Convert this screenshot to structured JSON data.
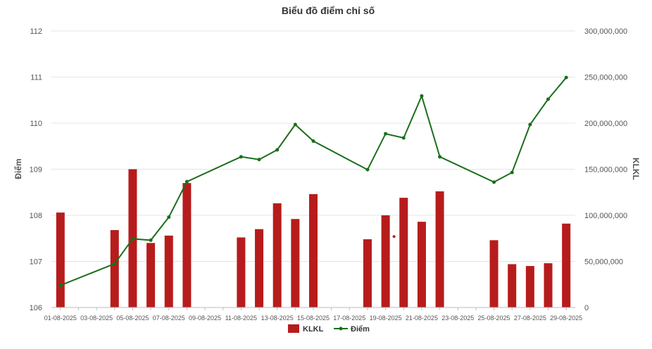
{
  "chart_data": {
    "type": "bar+line",
    "title": "Biểu đồ điểm chỉ số",
    "ylabel_left": "Điểm",
    "ylabel_right": "KLKL",
    "ylim_left": [
      106,
      112
    ],
    "ylim_right": [
      0,
      300000000
    ],
    "left_ticks": [
      "106",
      "107",
      "108",
      "109",
      "110",
      "111",
      "112"
    ],
    "right_ticks": [
      "0",
      "50,000,000",
      "100,000,000",
      "150,000,000",
      "200,000,000",
      "250,000,000",
      "300,000,000"
    ],
    "x": [
      "01-08-2025",
      "02-08-2025",
      "03-08-2025",
      "04-08-2025",
      "05-08-2025",
      "06-08-2025",
      "07-08-2025",
      "08-08-2025",
      "09-08-2025",
      "10-08-2025",
      "11-08-2025",
      "12-08-2025",
      "13-08-2025",
      "14-08-2025",
      "15-08-2025",
      "16-08-2025",
      "17-08-2025",
      "18-08-2025",
      "19-08-2025",
      "20-08-2025",
      "21-08-2025",
      "22-08-2025",
      "23-08-2025",
      "24-08-2025",
      "25-08-2025",
      "26-08-2025",
      "27-08-2025",
      "28-08-2025",
      "29-08-2025"
    ],
    "x_tick_labels": [
      "01-08-2025",
      "03-08-2025",
      "05-08-2025",
      "07-08-2025",
      "09-08-2025",
      "11-08-2025",
      "13-08-2025",
      "15-08-2025",
      "17-08-2025",
      "19-08-2025",
      "21-08-2025",
      "23-08-2025",
      "25-08-2025",
      "27-08-2025",
      "29-08-2025"
    ],
    "series": [
      {
        "name": "KLKL",
        "type": "bar",
        "color": "#b71c1c",
        "axis": "right",
        "values": [
          103000000,
          null,
          null,
          84000000,
          150000000,
          70000000,
          78000000,
          135000000,
          null,
          null,
          76000000,
          85000000,
          113000000,
          96000000,
          123000000,
          null,
          null,
          74000000,
          100000000,
          119000000,
          93000000,
          126000000,
          null,
          null,
          73000000,
          47000000,
          45000000,
          48000000,
          91000000
        ]
      },
      {
        "name": "Điểm",
        "type": "line",
        "color": "#1b6e1b",
        "axis": "left",
        "values": [
          106.48,
          null,
          null,
          106.95,
          107.49,
          107.46,
          107.96,
          108.73,
          null,
          null,
          109.27,
          109.21,
          109.42,
          109.97,
          109.61,
          null,
          null,
          108.99,
          109.77,
          109.68,
          110.59,
          109.27,
          null,
          null,
          108.72,
          108.93,
          109.97,
          110.52,
          110.99
        ]
      }
    ],
    "annotation_dot": {
      "x": "19-08-2025",
      "y": 107.54,
      "color": "#b71c1c"
    },
    "legend": [
      "KLKL",
      "Điểm"
    ],
    "legend_position": "bottom-center",
    "grid": true
  }
}
